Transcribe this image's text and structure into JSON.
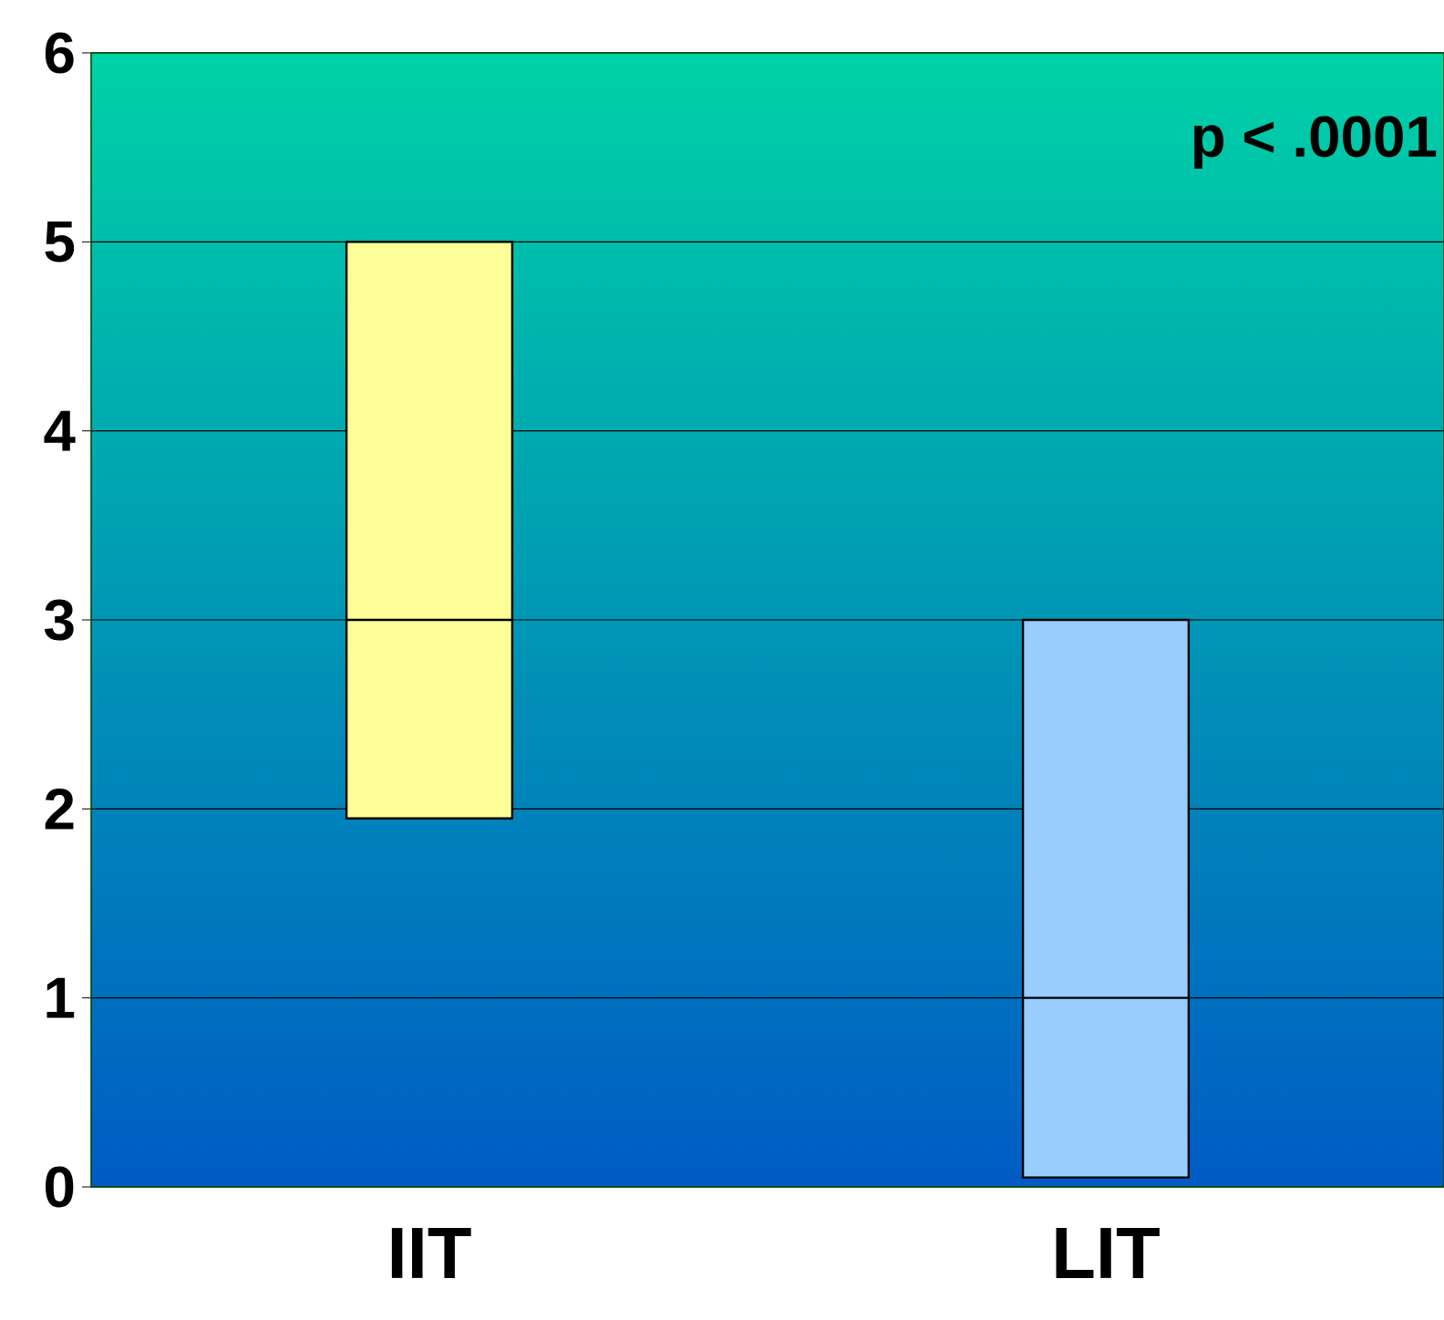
{
  "chart_data": {
    "type": "box",
    "categories": [
      "IIT",
      "LIT"
    ],
    "boxes": [
      {
        "low": 1.95,
        "q1": 1.95,
        "median": 3,
        "q3": 5,
        "high": 5
      },
      {
        "low": 0.05,
        "q1": 0.05,
        "median": 1,
        "q3": 3,
        "high": 3
      }
    ],
    "colors": [
      "#ffff99",
      "#99ccff"
    ],
    "ylim": [
      0,
      6
    ],
    "yticks": [
      0,
      1,
      2,
      3,
      4,
      5,
      6
    ],
    "grid": "y",
    "annotations": [
      "p < .0001"
    ]
  }
}
